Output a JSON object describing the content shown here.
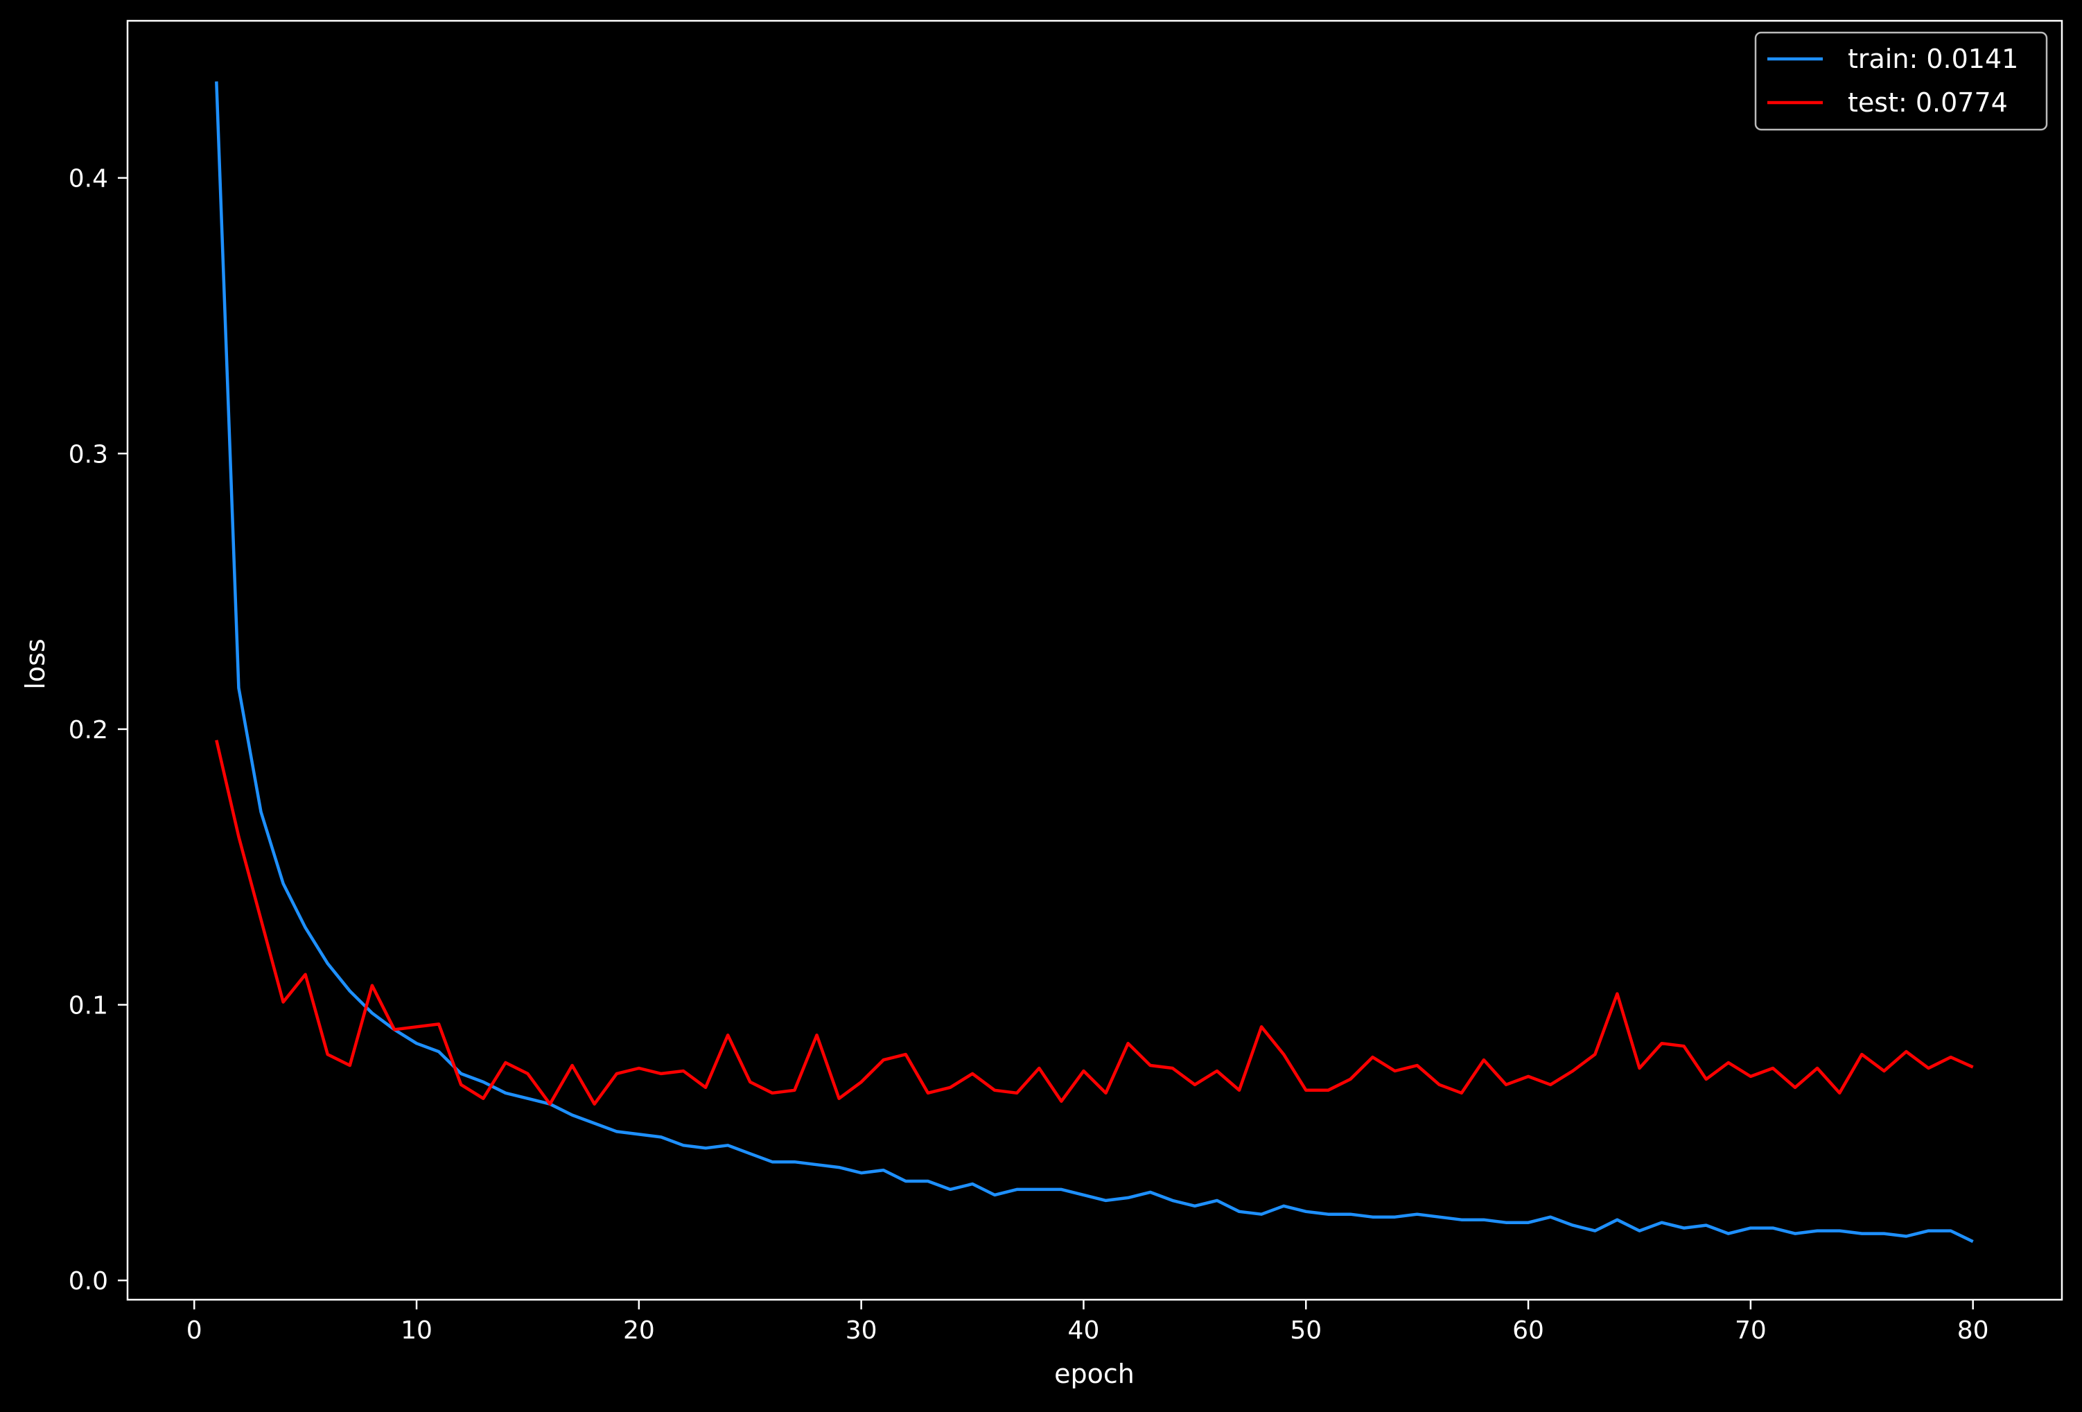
{
  "chart_data": {
    "type": "line",
    "title": "",
    "xlabel": "epoch",
    "ylabel": "loss",
    "xlim": [
      -3,
      84
    ],
    "ylim": [
      -0.007,
      0.457
    ],
    "xticks": [
      "0",
      "10",
      "20",
      "30",
      "40",
      "50",
      "60",
      "70",
      "80"
    ],
    "yticks": [
      "0.0",
      "0.1",
      "0.2",
      "0.3",
      "0.4"
    ],
    "grid": false,
    "legend_position": "top-right",
    "background": "#000000",
    "x": [
      1,
      2,
      3,
      4,
      5,
      6,
      7,
      8,
      9,
      10,
      11,
      12,
      13,
      14,
      15,
      16,
      17,
      18,
      19,
      20,
      21,
      22,
      23,
      24,
      25,
      26,
      27,
      28,
      29,
      30,
      31,
      32,
      33,
      34,
      35,
      36,
      37,
      38,
      39,
      40,
      41,
      42,
      43,
      44,
      45,
      46,
      47,
      48,
      49,
      50,
      51,
      52,
      53,
      54,
      55,
      56,
      57,
      58,
      59,
      60,
      61,
      62,
      63,
      64,
      65,
      66,
      67,
      68,
      69,
      70,
      71,
      72,
      73,
      74,
      75,
      76,
      77,
      78,
      79,
      80
    ],
    "series": [
      {
        "name": "train: 0.0141",
        "color": "#1e90ff",
        "values": [
          0.435,
          0.215,
          0.17,
          0.144,
          0.128,
          0.115,
          0.105,
          0.097,
          0.091,
          0.086,
          0.083,
          0.075,
          0.072,
          0.068,
          0.066,
          0.064,
          0.06,
          0.057,
          0.054,
          0.053,
          0.052,
          0.049,
          0.048,
          0.049,
          0.046,
          0.043,
          0.043,
          0.042,
          0.041,
          0.039,
          0.04,
          0.036,
          0.036,
          0.033,
          0.035,
          0.031,
          0.033,
          0.033,
          0.033,
          0.031,
          0.029,
          0.03,
          0.032,
          0.029,
          0.027,
          0.029,
          0.025,
          0.024,
          0.027,
          0.025,
          0.024,
          0.024,
          0.023,
          0.023,
          0.024,
          0.023,
          0.022,
          0.022,
          0.021,
          0.021,
          0.023,
          0.02,
          0.018,
          0.022,
          0.018,
          0.021,
          0.019,
          0.02,
          0.017,
          0.019,
          0.019,
          0.017,
          0.018,
          0.018,
          0.017,
          0.017,
          0.016,
          0.018,
          0.018,
          0.0141
        ]
      },
      {
        "name": "test: 0.0774",
        "color": "#ff0000",
        "values": [
          0.196,
          0.161,
          0.131,
          0.101,
          0.111,
          0.082,
          0.078,
          0.107,
          0.091,
          0.092,
          0.093,
          0.071,
          0.066,
          0.079,
          0.075,
          0.064,
          0.078,
          0.064,
          0.075,
          0.077,
          0.075,
          0.076,
          0.07,
          0.089,
          0.072,
          0.068,
          0.069,
          0.089,
          0.066,
          0.072,
          0.08,
          0.082,
          0.068,
          0.07,
          0.075,
          0.069,
          0.068,
          0.077,
          0.065,
          0.076,
          0.068,
          0.086,
          0.078,
          0.077,
          0.071,
          0.076,
          0.069,
          0.092,
          0.082,
          0.069,
          0.069,
          0.073,
          0.081,
          0.076,
          0.078,
          0.071,
          0.068,
          0.08,
          0.071,
          0.074,
          0.071,
          0.076,
          0.082,
          0.104,
          0.077,
          0.086,
          0.085,
          0.073,
          0.079,
          0.074,
          0.077,
          0.07,
          0.077,
          0.068,
          0.082,
          0.076,
          0.083,
          0.077,
          0.081,
          0.0774
        ]
      }
    ]
  }
}
